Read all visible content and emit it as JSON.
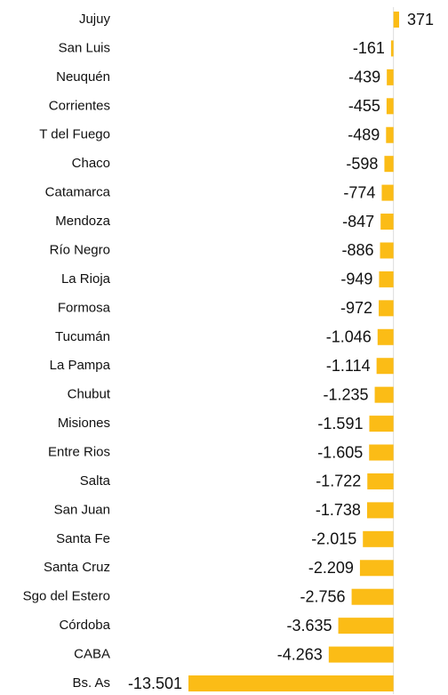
{
  "chart_data": {
    "type": "bar",
    "orientation": "horizontal",
    "categories": [
      "Jujuy",
      "San Luis",
      "Neuquén",
      "Corrientes",
      "T del Fuego",
      "Chaco",
      "Catamarca",
      "Mendoza",
      "Río Negro",
      "La Rioja",
      "Formosa",
      "Tucumán",
      "La Pampa",
      "Chubut",
      "Misiones",
      "Entre Rios",
      "Salta",
      "San Juan",
      "Santa Fe",
      "Santa Cruz",
      "Sgo del Estero",
      "Córdoba",
      "CABA",
      "Bs. As"
    ],
    "values": [
      371,
      -161,
      -439,
      -455,
      -489,
      -598,
      -774,
      -847,
      -886,
      -949,
      -972,
      -1046,
      -1114,
      -1235,
      -1591,
      -1605,
      -1722,
      -1738,
      -2015,
      -2209,
      -2756,
      -3635,
      -4263,
      -13501
    ],
    "value_labels": [
      "371",
      "-161",
      "-439",
      "-455",
      "-489",
      "-598",
      "-774",
      "-847",
      "-886",
      "-949",
      "-972",
      "-1.046",
      "-1.114",
      "-1.235",
      "-1.591",
      "-1.605",
      "-1.722",
      "-1.738",
      "-2.015",
      "-2.209",
      "-2.756",
      "-3.635",
      "-4.263",
      "-13.501"
    ],
    "color": "#fbbc16",
    "xlim": [
      -13501,
      371
    ]
  }
}
